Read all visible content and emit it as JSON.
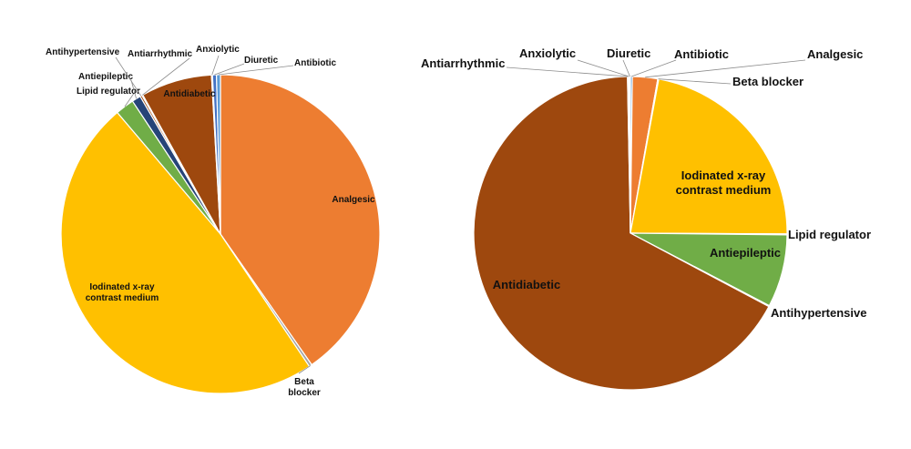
{
  "chart_data": [
    {
      "type": "pie",
      "title": "",
      "slices": [
        {
          "label": "Analgesic",
          "value": 40.3,
          "color": "#ED7D31"
        },
        {
          "label": "Beta blocker",
          "value": 0.3,
          "color": "#A5A5A5"
        },
        {
          "label": "Iodinated x-ray contrast medium",
          "value": 48.2,
          "color": "#FFC000"
        },
        {
          "label": "Lipid regulator",
          "value": 1.9,
          "color": "#70AD47"
        },
        {
          "label": "Antiepileptic",
          "value": 0.9,
          "color": "#264478"
        },
        {
          "label": "Antihypertensive",
          "value": 0.2,
          "color": "#9E480E"
        },
        {
          "label": "Antiarrhythmic",
          "value": 0.1,
          "color": "#636363"
        },
        {
          "label": "Antidiabetic",
          "value": 7.2,
          "color": "#9E480E"
        },
        {
          "label": "Anxiolytic",
          "value": 0.1,
          "color": "#5B9BD5"
        },
        {
          "label": "Diuretic",
          "value": 0.4,
          "color": "#4472C4"
        },
        {
          "label": "Antibiotic",
          "value": 0.4,
          "color": "#5B9BD5"
        }
      ]
    },
    {
      "type": "pie",
      "title": "",
      "slices": [
        {
          "label": "Antibiotic",
          "value": 0.2,
          "color": "#5B9BD5"
        },
        {
          "label": "Analgesic",
          "value": 2.6,
          "color": "#ED7D31"
        },
        {
          "label": "Beta blocker",
          "value": 0.1,
          "color": "#A5A5A5"
        },
        {
          "label": "Iodinated x-ray contrast medium",
          "value": 22.2,
          "color": "#FFC000"
        },
        {
          "label": "Lipid regulator",
          "value": 0.1,
          "color": "#5B9BD5"
        },
        {
          "label": "Antiepileptic",
          "value": 7.5,
          "color": "#70AD47"
        },
        {
          "label": "Antihypertensive",
          "value": 0.1,
          "color": "#264478"
        },
        {
          "label": "Antidiabetic",
          "value": 67.0,
          "color": "#9E480E"
        },
        {
          "label": "Antiarrhythmic",
          "value": 0.1,
          "color": "#636363"
        },
        {
          "label": "Anxiolytic",
          "value": 0.1,
          "color": "#997300"
        },
        {
          "label": "Diuretic",
          "value": 0.1,
          "color": "#4472C4"
        }
      ]
    }
  ]
}
